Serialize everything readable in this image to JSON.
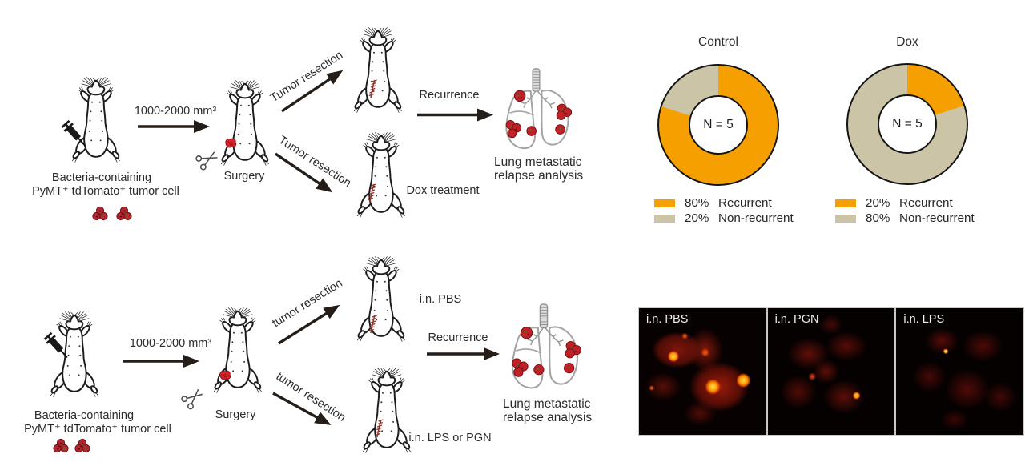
{
  "schematic_top": {
    "cell_line1": "Bacteria-containing",
    "cell_line2": "PyMT⁺ tdTomato⁺ tumor cell",
    "tumor_volume": "1000-2000 mm³",
    "surgery": "Surgery",
    "resection_upper": "Tumor resection",
    "resection_lower": "Tumor resection",
    "recurrence": "Recurrence",
    "dox_treatment": "Dox treatment",
    "lung_line1": "Lung metastatic",
    "lung_line2": "relapse analysis"
  },
  "schematic_bottom": {
    "cell_line1": "Bacteria-containing",
    "cell_line2": "PyMT⁺ tdTomato⁺ tumor cell",
    "tumor_volume": "1000-2000 mm³",
    "surgery": "Surgery",
    "resection_upper": "tumor resection",
    "resection_lower": "tumor resection",
    "treatment_upper": "i.n. PBS",
    "recurrence": "Recurrence",
    "treatment_lower": "i.n. LPS or PGN",
    "lung_line1": "Lung metastatic",
    "lung_line2": "relapse analysis"
  },
  "chart_data": [
    {
      "type": "pie",
      "subtype": "donut",
      "title": "Control",
      "center_label": "N = 5",
      "n": 5,
      "start_angle_deg": 0,
      "direction": "clockwise",
      "legend_position": "bottom",
      "slices": [
        {
          "label": "Recurrent",
          "value": 80,
          "pct_label": "80%",
          "color": "#F5A000"
        },
        {
          "label": "Non-recurrent",
          "value": 20,
          "pct_label": "20%",
          "color": "#CCC4A6"
        }
      ]
    },
    {
      "type": "pie",
      "subtype": "donut",
      "title": "Dox",
      "center_label": "N = 5",
      "n": 5,
      "start_angle_deg": 0,
      "direction": "clockwise",
      "legend_position": "bottom",
      "slices": [
        {
          "label": "Recurrent",
          "value": 20,
          "pct_label": "20%",
          "color": "#F5A000"
        },
        {
          "label": "Non-recurrent",
          "value": 80,
          "pct_label": "80%",
          "color": "#CCC4A6"
        }
      ]
    }
  ],
  "fluorescence": {
    "panels": [
      {
        "label": "i.n. PBS"
      },
      {
        "label": "i.n. PGN"
      },
      {
        "label": "i.n. LPS"
      }
    ]
  },
  "icons": {
    "mouse": "mouse-icon",
    "syringe": "syringe-icon",
    "scissors": "scissors-icon",
    "lungs": "lungs-icon",
    "tumor_cells": "tumor-cells-icon"
  },
  "colors": {
    "recurrent": "#F5A000",
    "non_recurrent": "#CCC4A6",
    "tumor_red": "#C4202A",
    "arrow": "#241D18",
    "text": "#2B2B2B"
  }
}
